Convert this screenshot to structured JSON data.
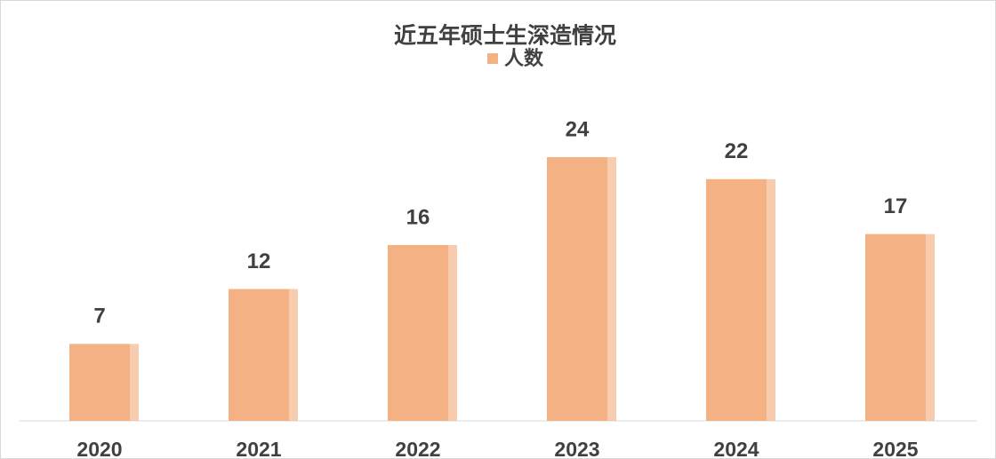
{
  "chart_data": {
    "type": "bar",
    "title": "近五年硕士生深造情况",
    "categories": [
      "2020",
      "2021",
      "2022",
      "2023",
      "2024",
      "2025"
    ],
    "series": [
      {
        "name": "人数",
        "color": "#f4b183",
        "values": [
          7,
          12,
          16,
          24,
          22,
          17
        ]
      }
    ],
    "ylim": [
      0,
      30
    ],
    "legend": "top",
    "data_labels": true
  }
}
